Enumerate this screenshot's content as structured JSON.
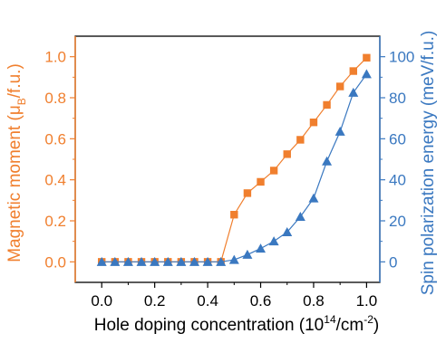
{
  "chart_data": {
    "type": "line",
    "x_axis": {
      "label": "Hole doping concentration (10",
      "label_sup1": "14",
      "label_mid": "/cm",
      "label_sup2": "-2",
      "label_end": ")",
      "range": [
        -0.1,
        1.05
      ],
      "ticks": [
        0.0,
        0.2,
        0.4,
        0.6,
        0.8,
        1.0
      ],
      "tick_labels": [
        "0.0",
        "0.2",
        "0.4",
        "0.6",
        "0.8",
        "1.0"
      ]
    },
    "y_left": {
      "label": "Magnetic moment (μ",
      "label_sub": "B",
      "label_end": "/f.u.)",
      "range": [
        -0.1,
        1.1
      ],
      "ticks": [
        0.0,
        0.2,
        0.4,
        0.6,
        0.8,
        1.0
      ],
      "tick_labels": [
        "0.0",
        "0.2",
        "0.4",
        "0.6",
        "0.8",
        "1.0"
      ],
      "color": "#f07f2e"
    },
    "y_right": {
      "label": "Spin polarization energy (meV/f.u.)",
      "range": [
        -10,
        110
      ],
      "ticks": [
        0,
        20,
        40,
        60,
        80,
        100
      ],
      "tick_labels": [
        "0",
        "20",
        "40",
        "60",
        "80",
        "100"
      ],
      "color": "#3a78c0"
    },
    "series": [
      {
        "axis": "left",
        "marker": "square",
        "color": "#f07f2e",
        "x": [
          0.0,
          0.05,
          0.1,
          0.15,
          0.2,
          0.25,
          0.3,
          0.35,
          0.4,
          0.45,
          0.5,
          0.55,
          0.6,
          0.65,
          0.7,
          0.75,
          0.8,
          0.85,
          0.9,
          0.95,
          1.0
        ],
        "y": [
          0,
          0,
          0,
          0,
          0,
          0,
          0,
          0,
          0,
          0,
          0.23,
          0.335,
          0.39,
          0.445,
          0.525,
          0.595,
          0.68,
          0.765,
          0.855,
          0.93,
          0.995
        ]
      },
      {
        "axis": "right",
        "marker": "triangle",
        "color": "#3a78c0",
        "x": [
          0.0,
          0.05,
          0.1,
          0.15,
          0.2,
          0.25,
          0.3,
          0.35,
          0.4,
          0.45,
          0.5,
          0.55,
          0.6,
          0.65,
          0.7,
          0.75,
          0.8,
          0.85,
          0.9,
          0.95,
          1.0
        ],
        "y": [
          0,
          0,
          0,
          0,
          0,
          0,
          0,
          0,
          0,
          0,
          1,
          3.5,
          6.5,
          10,
          14.5,
          22,
          31,
          49,
          63.5,
          82.5,
          91.5
        ]
      }
    ]
  }
}
